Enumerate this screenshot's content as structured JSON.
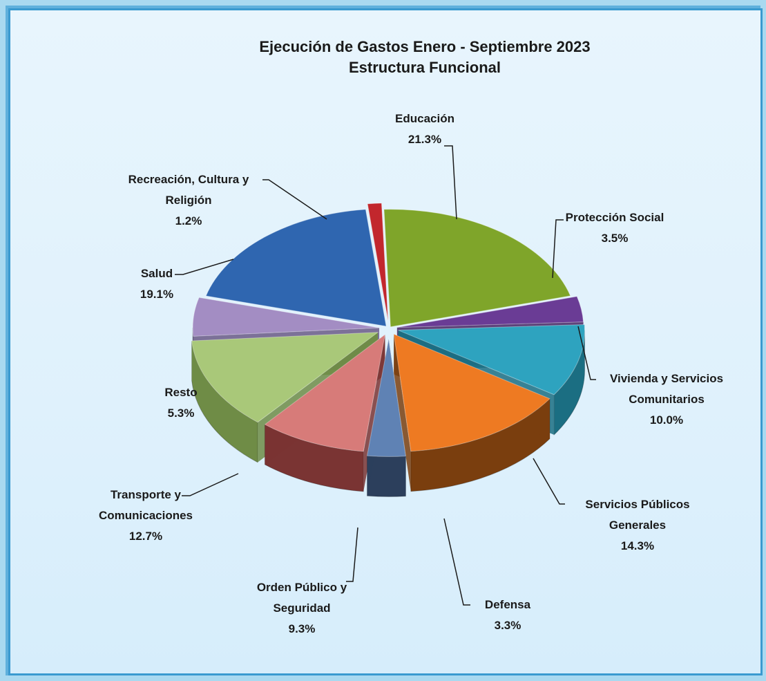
{
  "chart_data": {
    "type": "pie",
    "title": "Ejecución de Gastos Enero - Septiembre 2023",
    "subtitle": "Estructura Funcional",
    "slices": [
      {
        "label_lines": [
          "Educación"
        ],
        "percent_label": "21.3%",
        "value": 21.3,
        "color": "#7fa52a",
        "side": "#566f1b"
      },
      {
        "label_lines": [
          "Protección  Social"
        ],
        "percent_label": "3.5%",
        "value": 3.5,
        "color": "#6a3c95",
        "side": "#452563"
      },
      {
        "label_lines": [
          "Vivienda y Servicios",
          "Comunitarios"
        ],
        "percent_label": "10.0%",
        "value": 10.0,
        "color": "#2ea3bf",
        "side": "#1b6e82"
      },
      {
        "label_lines": [
          "Servicios Públicos",
          "Generales"
        ],
        "percent_label": "14.3%",
        "value": 14.3,
        "color": "#ee7a22",
        "side": "#7a3e0e"
      },
      {
        "label_lines": [
          "Defensa"
        ],
        "percent_label": "3.3%",
        "value": 3.3,
        "color": "#5f82b4",
        "side": "#2c3f5c"
      },
      {
        "label_lines": [
          "Orden Público y",
          "Seguridad"
        ],
        "percent_label": "9.3%",
        "value": 9.3,
        "color": "#d77b79",
        "side": "#7a3433"
      },
      {
        "label_lines": [
          "Transporte y",
          "Comunicaciones"
        ],
        "percent_label": "12.7%",
        "value": 12.7,
        "color": "#a9c879",
        "side": "#6f8c46"
      },
      {
        "label_lines": [
          "Resto"
        ],
        "percent_label": "5.3%",
        "value": 5.3,
        "color": "#a38dc3",
        "side": "#6a5a86"
      },
      {
        "label_lines": [
          "Salud"
        ],
        "percent_label": "19.1%",
        "value": 19.1,
        "color": "#2f66b0",
        "side": "#1d3f6e"
      },
      {
        "label_lines": [
          "Recreación,  Cultura y",
          "Religión"
        ],
        "percent_label": "1.2%",
        "value": 1.2,
        "color": "#c2272d",
        "side": "#7a1418"
      }
    ]
  }
}
